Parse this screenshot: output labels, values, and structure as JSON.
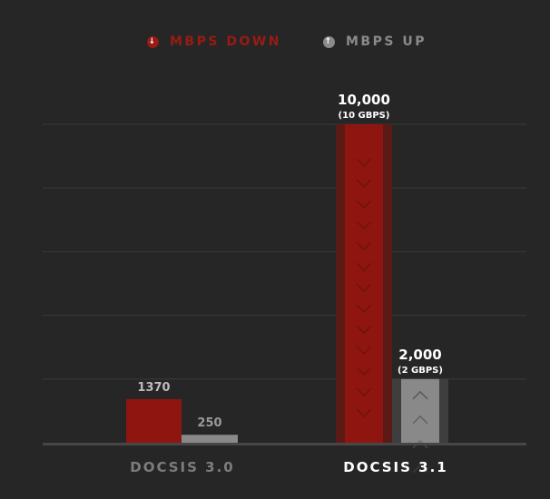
{
  "legend": {
    "down": {
      "label": "MBPS DOWN",
      "icon": "arrow-down-circle-icon"
    },
    "up": {
      "label": "MBPS UP",
      "icon": "arrow-up-circle-icon"
    }
  },
  "colors": {
    "background": "#262626",
    "down": "#8f1610",
    "up": "#898989",
    "down_label": "#9a1a14",
    "up_label": "#8a8a8a",
    "grid": "#3a3a3a"
  },
  "chart_data": {
    "type": "bar",
    "categories": [
      "DOCSIS 3.0",
      "DOCSIS 3.1"
    ],
    "series": [
      {
        "name": "MBPS DOWN",
        "values": [
          1370,
          10000
        ]
      },
      {
        "name": "MBPS UP",
        "values": [
          250,
          2000
        ]
      }
    ],
    "data_labels": {
      "down": [
        "1370",
        "10,000"
      ],
      "down_sub": [
        "",
        "(10 GBPS)"
      ],
      "up": [
        "250",
        "2,000"
      ],
      "up_sub": [
        "",
        "(2 GBPS)"
      ]
    },
    "ylim": [
      0,
      10000
    ],
    "grid": true,
    "legend_position": "top"
  }
}
